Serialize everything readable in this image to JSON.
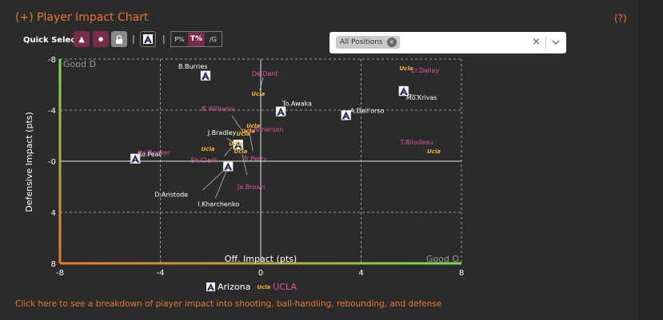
{
  "header": {
    "title": "(+) Player Impact Chart",
    "help": "(?)"
  },
  "quick_select": {
    "label": "Quick Select:",
    "buttons": [
      {
        "name": "triangle-icon",
        "glyph": "▲"
      },
      {
        "name": "dot-icon",
        "glyph": "●"
      },
      {
        "name": "lock-icon",
        "glyph": ""
      },
      {
        "name": "arizona-logo-icon",
        "glyph": ""
      }
    ],
    "toggles": [
      {
        "label": "P%",
        "active": false
      },
      {
        "label": "T%",
        "active": true
      },
      {
        "label": "/G",
        "active": false
      }
    ]
  },
  "position_select": {
    "tag": "All Positions",
    "tag_remove": "×",
    "clear": "×"
  },
  "colors": {
    "accent": "#e8772e",
    "arizona": "#ffffff",
    "ucla": "#e0559a",
    "ucla_logo": "#f1b82d",
    "good_green": "#7ed957"
  },
  "chart_data": {
    "type": "scatter",
    "title": "",
    "xlabel": "Off. Impact (pts)",
    "ylabel": "Defensive Impact (pts)",
    "xlim": [
      -8,
      8
    ],
    "ylim": [
      -8,
      8
    ],
    "y_inverted": true,
    "xticks": [
      -8,
      -4,
      0,
      4,
      8
    ],
    "yticks": [
      -8,
      -4,
      0,
      4,
      8
    ],
    "ytick_labels": [
      "-8",
      "-4",
      "-0",
      "4",
      "8"
    ],
    "corner_labels": {
      "top_left": "Good D",
      "bottom_right": "Good O"
    },
    "grid": true,
    "legend": [
      "Arizona",
      "UCLA"
    ],
    "series": [
      {
        "name": "Arizona",
        "points": [
          {
            "label": "B.Burries",
            "x": -2.2,
            "y": -6.7
          },
          {
            "label": "To.Awaka",
            "x": 0.8,
            "y": -3.9
          },
          {
            "label": "A.Dell'orso",
            "x": 3.4,
            "y": -3.6
          },
          {
            "label": "Mo.Krivas",
            "x": 5.7,
            "y": -5.5
          },
          {
            "label": "J.Bradley",
            "x": -0.9,
            "y": -1.3
          },
          {
            "label": "Ko.Peat",
            "x": -5.0,
            "y": -0.2
          },
          {
            "label": "D.Aristode",
            "x": -1.3,
            "y": 0.4
          },
          {
            "label": "I.Kharchenko",
            "x": -1.3,
            "y": 0.4
          }
        ]
      },
      {
        "name": "UCLA",
        "points": [
          {
            "label": "Er.Dailey",
            "x": 5.8,
            "y": -7.3
          },
          {
            "label": "De.Dent",
            "x": -0.1,
            "y": -5.3
          },
          {
            "label": "B.Williams",
            "x": -0.7,
            "y": -2.2
          },
          {
            "label": "S.Jamerson",
            "x": -0.3,
            "y": -2.8
          },
          {
            "label": "Xa.Booker",
            "x": -2.1,
            "y": -1.0
          },
          {
            "label": "Sk.Clark",
            "x": -1.0,
            "y": -1.4
          },
          {
            "label": "Tr.Perry",
            "x": -0.5,
            "y": -2.4
          },
          {
            "label": "Ja.Brown",
            "x": -0.8,
            "y": -0.8
          },
          {
            "label": "T.Bilodeau",
            "x": 6.9,
            "y": -0.8
          }
        ]
      }
    ]
  },
  "footer": {
    "link": "Click here to see a breakdown of player impact into shooting, ball-handling, rebounding, and defense"
  }
}
